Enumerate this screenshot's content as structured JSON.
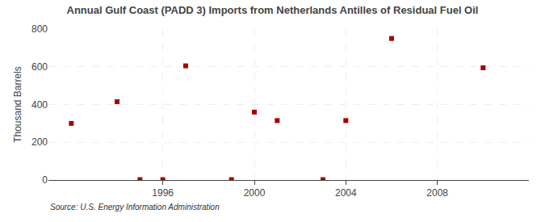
{
  "chart_data": {
    "type": "scatter",
    "title": "Annual Gulf Coast (PADD 3) Imports from Netherlands Antilles of Residual Fuel Oil",
    "ylabel": "Thousand Barrels",
    "annotations": [
      "Source: U.S. Energy Information Administration"
    ],
    "x": [
      1992,
      1994,
      1995,
      1996,
      1997,
      1999,
      2000,
      2001,
      2003,
      2004,
      2006,
      2010
    ],
    "values": [
      300,
      415,
      2,
      2,
      605,
      2,
      360,
      315,
      2,
      315,
      750,
      595
    ],
    "color": "#aa0000",
    "marker": "square",
    "xlim": [
      1991,
      2012
    ],
    "ylim": [
      0,
      800
    ],
    "xticks": [
      1996,
      2000,
      2004,
      2008
    ],
    "yticks": [
      0,
      200,
      400,
      600,
      800
    ],
    "grid": true
  }
}
